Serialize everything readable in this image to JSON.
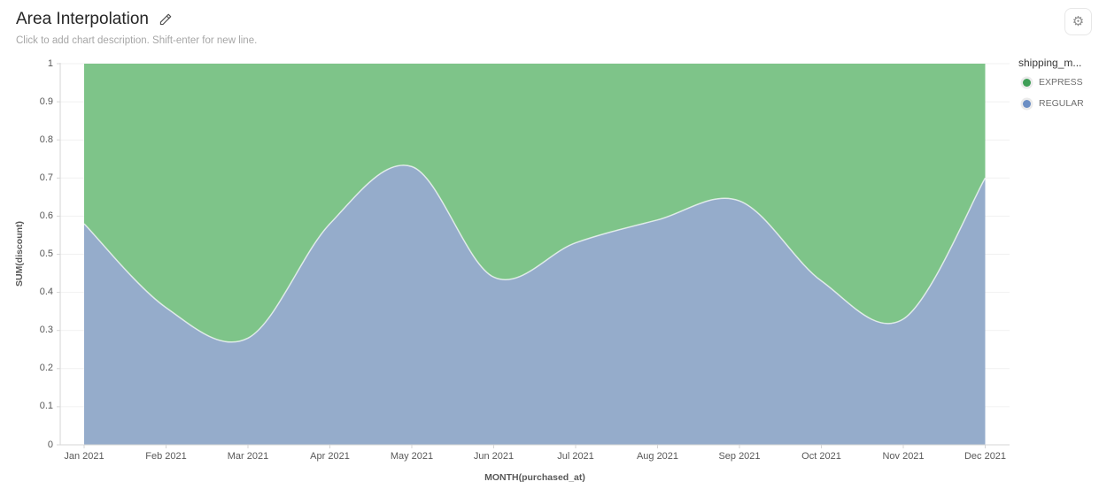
{
  "header": {
    "title": "Area Interpolation",
    "subtitle": "Click to add chart description. Shift-enter for new line."
  },
  "toolbar": {
    "settings_icon": "gear-icon"
  },
  "legend": {
    "title": "shipping_m...",
    "items": [
      {
        "label": "EXPRESS",
        "dot_color": "#3f9e57"
      },
      {
        "label": "REGULAR",
        "dot_color": "#6b8ec4"
      }
    ]
  },
  "chart_data": {
    "type": "area",
    "stacked": true,
    "normalized": true,
    "interpolation": "smooth",
    "title": "Area Interpolation",
    "xlabel": "MONTH(purchased_at)",
    "ylabel": "SUM(discount)",
    "ylim": [
      0,
      1
    ],
    "grid": "horizontal",
    "legend_position": "top-right",
    "y_ticks": [
      "0",
      "0.1",
      "0.2",
      "0.3",
      "0.4",
      "0.5",
      "0.6",
      "0.7",
      "0.8",
      "0.9",
      "1"
    ],
    "categories": [
      "Jan 2021",
      "Feb 2021",
      "Mar 2021",
      "Apr 2021",
      "May 2021",
      "Jun 2021",
      "Jul 2021",
      "Aug 2021",
      "Sep 2021",
      "Oct 2021",
      "Nov 2021",
      "Dec 2021"
    ],
    "series": [
      {
        "name": "EXPRESS",
        "area_color": "#7ec489",
        "dot_color": "#3f9e57",
        "values": [
          0.42,
          0.64,
          0.72,
          0.42,
          0.27,
          0.56,
          0.47,
          0.41,
          0.36,
          0.57,
          0.67,
          0.3
        ]
      },
      {
        "name": "REGULAR",
        "area_color": "#95accb",
        "dot_color": "#6b8ec4",
        "values": [
          0.58,
          0.36,
          0.28,
          0.58,
          0.73,
          0.44,
          0.53,
          0.59,
          0.64,
          0.43,
          0.33,
          0.7
        ]
      }
    ],
    "colors": {
      "axis_line": "#d6d6d6",
      "gridline": "#f1f1f1",
      "tick": "#d6d6d6"
    }
  }
}
